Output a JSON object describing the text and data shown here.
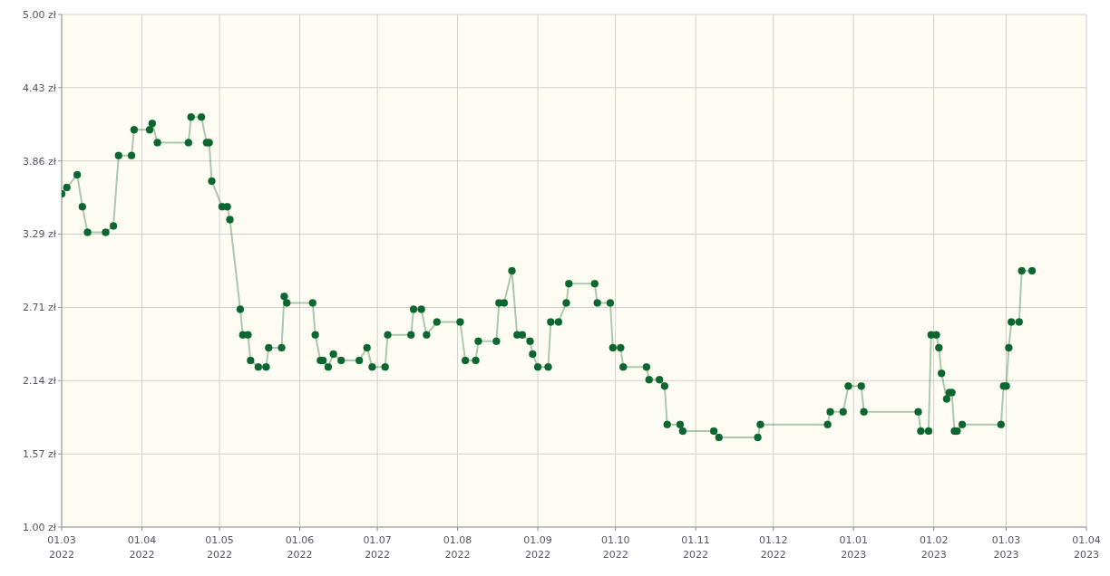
{
  "chart_data": {
    "type": "line",
    "x": [
      "2022-03-01",
      "2022-03-03",
      "2022-03-07",
      "2022-03-09",
      "2022-03-11",
      "2022-03-18",
      "2022-03-21",
      "2022-03-23",
      "2022-03-28",
      "2022-03-29",
      "2022-04-04",
      "2022-04-05",
      "2022-04-07",
      "2022-04-19",
      "2022-04-20",
      "2022-04-24",
      "2022-04-26",
      "2022-04-27",
      "2022-04-28",
      "2022-05-02",
      "2022-05-04",
      "2022-05-05",
      "2022-05-09",
      "2022-05-10",
      "2022-05-12",
      "2022-05-13",
      "2022-05-16",
      "2022-05-19",
      "2022-05-20",
      "2022-05-25",
      "2022-05-26",
      "2022-05-27",
      "2022-06-06",
      "2022-06-07",
      "2022-06-09",
      "2022-06-10",
      "2022-06-12",
      "2022-06-14",
      "2022-06-17",
      "2022-06-24",
      "2022-06-27",
      "2022-06-29",
      "2022-07-04",
      "2022-07-05",
      "2022-07-14",
      "2022-07-15",
      "2022-07-18",
      "2022-07-20",
      "2022-07-24",
      "2022-08-02",
      "2022-08-04",
      "2022-08-08",
      "2022-08-09",
      "2022-08-16",
      "2022-08-17",
      "2022-08-19",
      "2022-08-22",
      "2022-08-24",
      "2022-08-26",
      "2022-08-29",
      "2022-08-30",
      "2022-09-01",
      "2022-09-05",
      "2022-09-06",
      "2022-09-09",
      "2022-09-12",
      "2022-09-13",
      "2022-09-23",
      "2022-09-24",
      "2022-09-29",
      "2022-09-30",
      "2022-10-03",
      "2022-10-04",
      "2022-10-13",
      "2022-10-14",
      "2022-10-18",
      "2022-10-20",
      "2022-10-21",
      "2022-10-26",
      "2022-10-27",
      "2022-11-08",
      "2022-11-10",
      "2022-11-25",
      "2022-11-26",
      "2022-12-22",
      "2022-12-23",
      "2022-12-28",
      "2022-12-30",
      "2023-01-04",
      "2023-01-05",
      "2023-01-26",
      "2023-01-27",
      "2023-01-30",
      "2023-01-31",
      "2023-02-02",
      "2023-02-03",
      "2023-02-04",
      "2023-02-06",
      "2023-02-07",
      "2023-02-08",
      "2023-02-09",
      "2023-02-10",
      "2023-02-12",
      "2023-02-27",
      "2023-02-28",
      "2023-03-01",
      "2023-03-02",
      "2023-03-03",
      "2023-03-06",
      "2023-03-07",
      "2023-03-11"
    ],
    "series": [
      {
        "color": "#0b6630",
        "values": [
          3.6,
          3.65,
          3.75,
          3.5,
          3.3,
          3.3,
          3.35,
          3.9,
          3.9,
          4.1,
          4.1,
          4.15,
          4.0,
          4.0,
          4.2,
          4.2,
          4.0,
          4.0,
          3.7,
          3.5,
          3.5,
          3.4,
          2.7,
          2.5,
          2.5,
          2.3,
          2.25,
          2.25,
          2.4,
          2.4,
          2.8,
          2.75,
          2.75,
          2.5,
          2.3,
          2.3,
          2.25,
          2.35,
          2.3,
          2.3,
          2.4,
          2.25,
          2.25,
          2.5,
          2.5,
          2.7,
          2.7,
          2.5,
          2.6,
          2.6,
          2.3,
          2.3,
          2.45,
          2.45,
          2.75,
          2.75,
          3.0,
          2.5,
          2.5,
          2.45,
          2.35,
          2.25,
          2.25,
          2.6,
          2.6,
          2.75,
          2.9,
          2.9,
          2.75,
          2.75,
          2.4,
          2.4,
          2.25,
          2.25,
          2.15,
          2.15,
          2.1,
          1.8,
          1.8,
          1.75,
          1.75,
          1.7,
          1.7,
          1.8,
          1.8,
          1.9,
          1.9,
          2.1,
          2.1,
          1.9,
          1.9,
          1.75,
          1.75,
          2.5,
          2.5,
          2.4,
          2.2,
          2.0,
          2.05,
          2.05,
          1.75,
          1.75,
          1.8,
          1.8,
          2.1,
          2.1,
          2.4,
          2.6,
          2.6,
          3.0,
          3.0
        ]
      }
    ],
    "xlim": [
      "2022-03-01",
      "2023-04-01"
    ],
    "xticks": [
      {
        "value": "2022-03-01",
        "label": "01.03 2022"
      },
      {
        "value": "2022-04-01",
        "label": "01.04 2022"
      },
      {
        "value": "2022-05-01",
        "label": "01.05 2022"
      },
      {
        "value": "2022-06-01",
        "label": "01.06 2022"
      },
      {
        "value": "2022-07-01",
        "label": "01.07 2022"
      },
      {
        "value": "2022-08-01",
        "label": "01.08 2022"
      },
      {
        "value": "2022-09-01",
        "label": "01.09 2022"
      },
      {
        "value": "2022-10-01",
        "label": "01.10 2022"
      },
      {
        "value": "2022-11-01",
        "label": "01.11 2022"
      },
      {
        "value": "2022-12-01",
        "label": "01.12 2022"
      },
      {
        "value": "2023-01-01",
        "label": "01.01 2023"
      },
      {
        "value": "2023-02-01",
        "label": "01.02 2023"
      },
      {
        "value": "2023-03-01",
        "label": "01.03 2023"
      },
      {
        "value": "2023-04-01",
        "label": "01.04 2023"
      }
    ],
    "ylim": [
      1,
      5
    ],
    "yticks": [
      {
        "value": 1,
        "label": "1.00 zł"
      },
      {
        "value": 1.571,
        "label": "1.57 zł"
      },
      {
        "value": 2.143,
        "label": "2.14 zł"
      },
      {
        "value": 2.714,
        "label": "2.71 zł"
      },
      {
        "value": 3.286,
        "label": "3.29 zł"
      },
      {
        "value": 3.857,
        "label": "3.86 zł"
      },
      {
        "value": 4.429,
        "label": "4.43 zł"
      },
      {
        "value": 5,
        "label": "5.00 zł"
      }
    ],
    "grid": true,
    "marker": "circle",
    "line_style": "solid"
  }
}
